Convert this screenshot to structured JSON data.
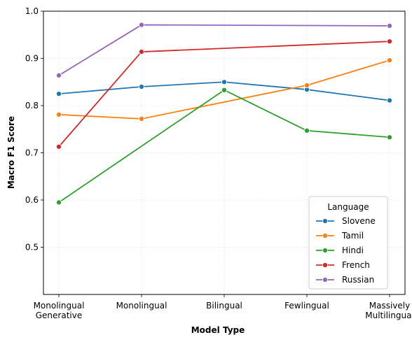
{
  "chart_data": {
    "type": "line",
    "xlabel": "Model Type",
    "ylabel": "Macro F1 Score",
    "categories": [
      [
        "Monolingual",
        "Generative"
      ],
      [
        "Monolingual"
      ],
      [
        "Bilingual"
      ],
      [
        "Fewlingual"
      ],
      [
        "Massively",
        "Multilingual"
      ]
    ],
    "ylim": [
      0.4,
      1.0
    ],
    "yticks": [
      "0.5",
      "0.6",
      "0.7",
      "0.8",
      "0.9",
      "1.0"
    ],
    "grid": true,
    "legend_title": "Language",
    "legend_position": "lower-right",
    "series": [
      {
        "name": "Slovene",
        "color": "#1f77b4",
        "x": [
          0,
          1,
          2,
          3,
          4
        ],
        "values": [
          0.825,
          0.84,
          0.85,
          0.834,
          0.811
        ]
      },
      {
        "name": "Tamil",
        "color": "#ff7f0e",
        "x": [
          0,
          1,
          3,
          4
        ],
        "values": [
          0.781,
          0.772,
          0.843,
          0.896
        ]
      },
      {
        "name": "Hindi",
        "color": "#2ca02c",
        "x": [
          0,
          2,
          3,
          4
        ],
        "values": [
          0.595,
          0.833,
          0.747,
          0.733
        ]
      },
      {
        "name": "French",
        "color": "#d62728",
        "x": [
          0,
          1,
          4
        ],
        "values": [
          0.713,
          0.914,
          0.936
        ]
      },
      {
        "name": "Russian",
        "color": "#9467bd",
        "x": [
          0,
          1,
          4
        ],
        "values": [
          0.864,
          0.971,
          0.969
        ]
      }
    ]
  }
}
